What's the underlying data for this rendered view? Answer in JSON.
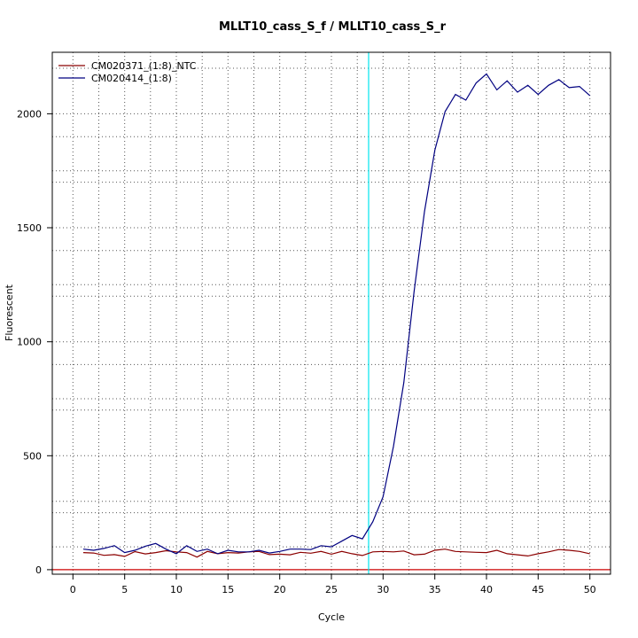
{
  "chart_data": {
    "type": "line",
    "title": "MLLT10_cass_S_f / MLLT10_cass_S_r",
    "xlabel": "Cycle",
    "ylabel": "Fluorescent",
    "xlim": [
      -2,
      52
    ],
    "ylim": [
      -20,
      2270
    ],
    "x_ticks": [
      0,
      5,
      10,
      15,
      20,
      25,
      30,
      35,
      40,
      45,
      50
    ],
    "y_ticks": [
      0,
      500,
      1000,
      1500,
      2000
    ],
    "grid": true,
    "legend_position": "top-left",
    "threshold_cycle": 28.6,
    "threshold_color": "#00e5ee",
    "baseline_value": 0,
    "baseline_color": "#cc0000",
    "series": [
      {
        "name": "CM020371_(1:8)_NTC",
        "color": "#8b0000",
        "x": [
          1,
          2,
          3,
          4,
          5,
          6,
          7,
          8,
          9,
          10,
          11,
          12,
          13,
          14,
          15,
          16,
          17,
          18,
          19,
          20,
          21,
          22,
          23,
          24,
          25,
          26,
          27,
          28,
          29,
          30,
          31,
          32,
          33,
          34,
          35,
          36,
          37,
          38,
          39,
          40,
          41,
          42,
          43,
          44,
          45,
          46,
          47,
          48,
          49,
          50
        ],
        "values": [
          75,
          73,
          63,
          66,
          58,
          79,
          69,
          75,
          83,
          78,
          75,
          55,
          80,
          70,
          75,
          73,
          78,
          80,
          66,
          68,
          65,
          76,
          72,
          80,
          68,
          80,
          70,
          62,
          78,
          80,
          78,
          82,
          65,
          68,
          85,
          90,
          80,
          78,
          76,
          75,
          85,
          70,
          65,
          60,
          70,
          78,
          88,
          85,
          80,
          70
        ]
      },
      {
        "name": "CM020414_(1:8)",
        "color": "#000080",
        "x": [
          1,
          2,
          3,
          4,
          5,
          6,
          7,
          8,
          9,
          10,
          11,
          12,
          13,
          14,
          15,
          16,
          17,
          18,
          19,
          20,
          21,
          22,
          23,
          24,
          25,
          26,
          27,
          28,
          29,
          30,
          31,
          32,
          33,
          34,
          35,
          36,
          37,
          38,
          39,
          40,
          41,
          42,
          43,
          44,
          45,
          46,
          47,
          48,
          49,
          50
        ],
        "values": [
          90,
          85,
          93,
          105,
          75,
          85,
          103,
          115,
          90,
          70,
          105,
          80,
          90,
          70,
          85,
          78,
          78,
          85,
          73,
          80,
          90,
          90,
          88,
          105,
          100,
          125,
          150,
          135,
          210,
          320,
          540,
          820,
          1220,
          1570,
          1840,
          2010,
          2085,
          2060,
          2135,
          2175,
          2105,
          2145,
          2095,
          2125,
          2085,
          2125,
          2150,
          2115,
          2120,
          2080
        ]
      }
    ]
  }
}
